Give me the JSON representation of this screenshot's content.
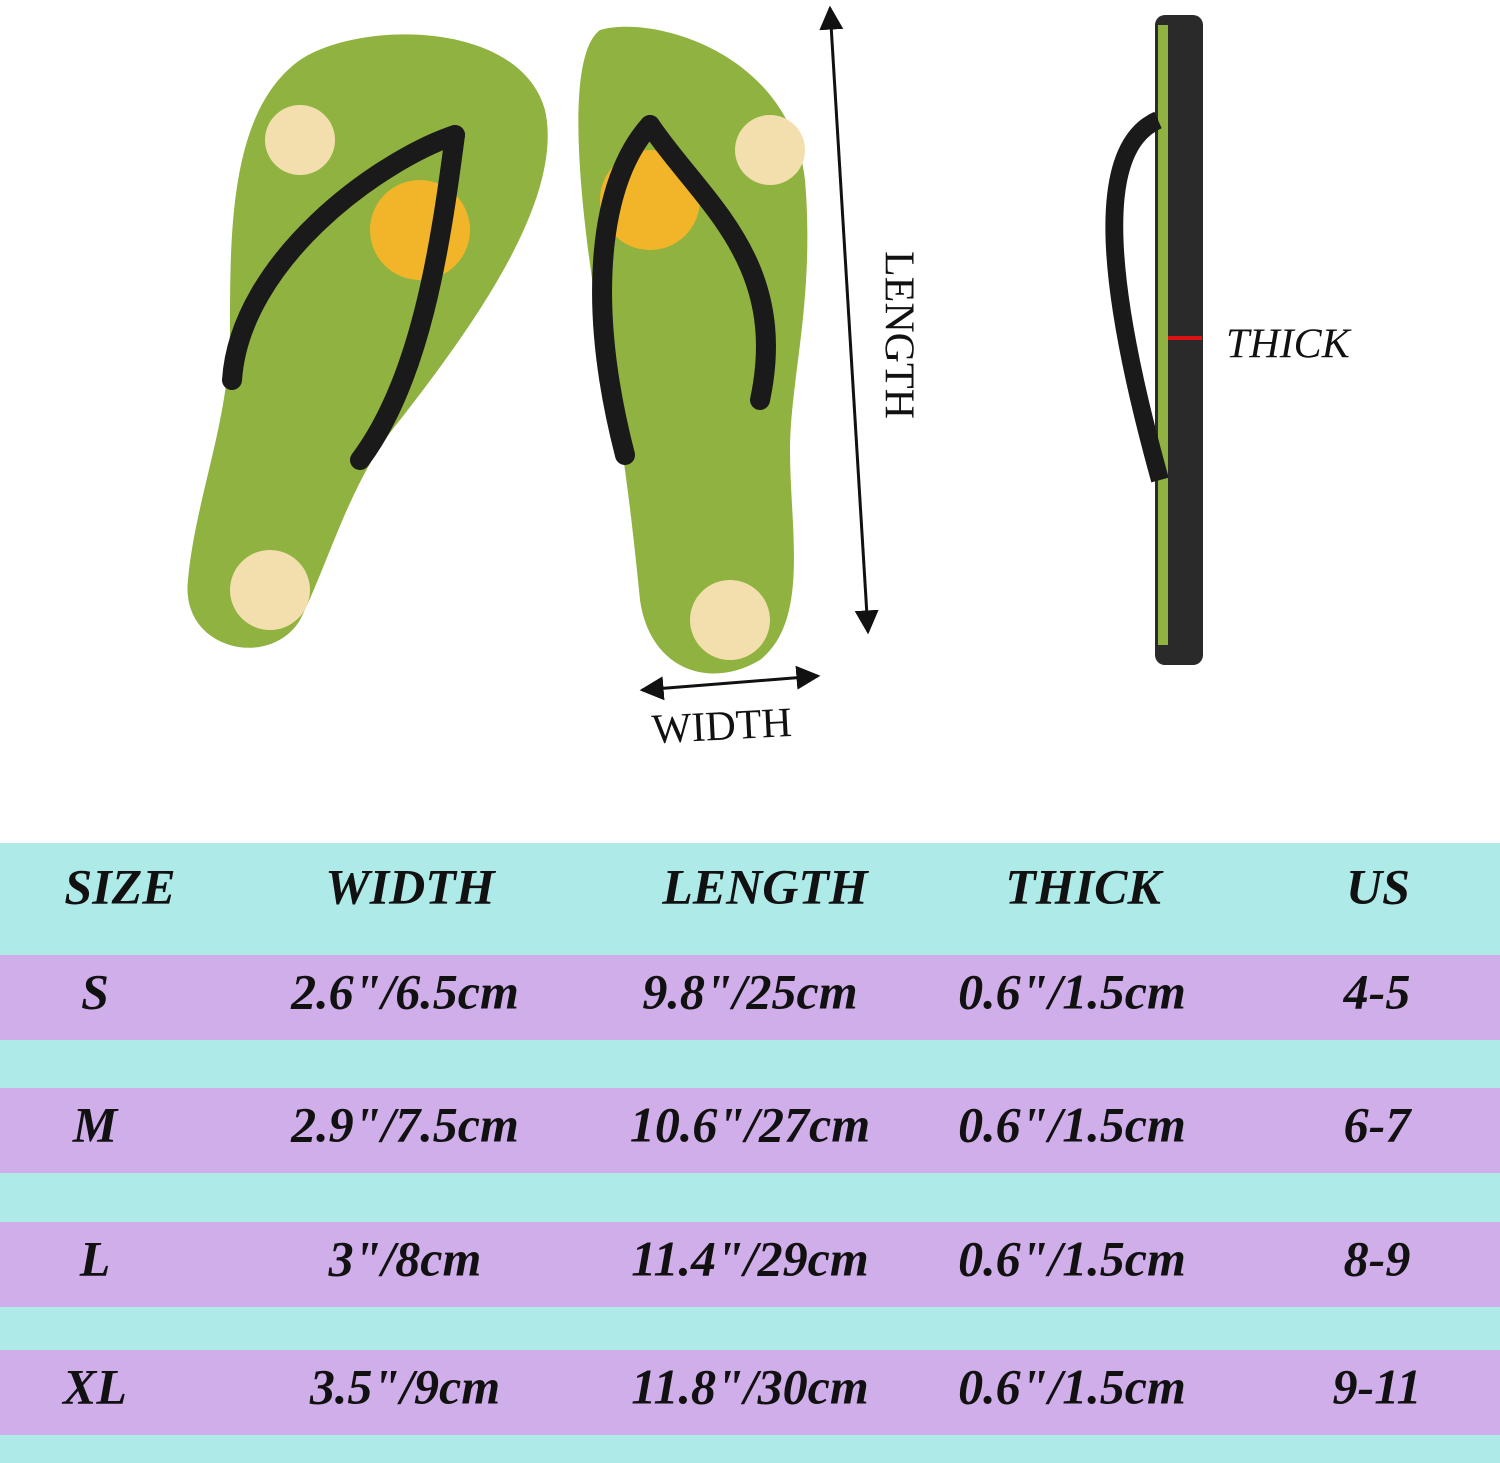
{
  "labels": {
    "length": "LENGTH",
    "width": "WIDTH",
    "thick": "THICK"
  },
  "table": {
    "header": [
      "SIZE",
      "WIDTH",
      "LENGTH",
      "THICK",
      "US"
    ],
    "rows": [
      [
        "S",
        "2.6\"/6.5cm",
        "9.8\"/25cm",
        "0.6\"/1.5cm",
        "4-5"
      ],
      [
        "M",
        "2.9\"/7.5cm",
        "10.6\"/27cm",
        "0.6\"/1.5cm",
        "6-7"
      ],
      [
        "L",
        "3\"/8cm",
        "11.4\"/29cm",
        "0.6\"/1.5cm",
        "8-9"
      ],
      [
        "XL",
        "3.5\"/9cm",
        "11.8\"/30cm",
        "0.6\"/1.5cm",
        "9-11"
      ]
    ]
  }
}
